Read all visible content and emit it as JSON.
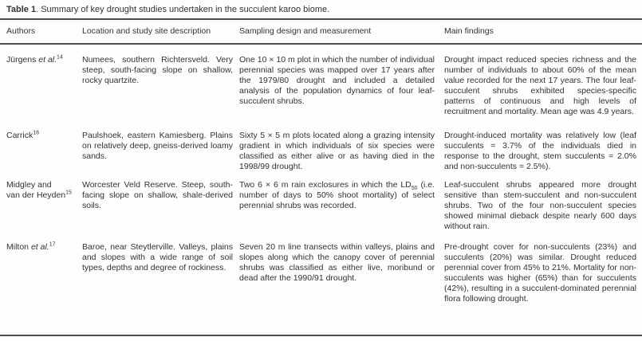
{
  "colors": {
    "text": "#333333",
    "rule": "#4c4c4c",
    "background": "#fdfdfd"
  },
  "table": {
    "title_label": "Table 1",
    "title_rest": ". Summary of key drought studies undertaken in the succulent karoo biome.",
    "columns": [
      "Authors",
      "Location and study site description",
      "Sampling design and measurement",
      "Main findings"
    ],
    "rows": [
      {
        "author_name": "Jürgens ",
        "author_etal": "et al.",
        "author_ref": "14",
        "location": "Numees, southern Richtersveld. Very steep, south-facing slope on shallow, rocky quartzite.",
        "sampling": "One 10 × 10 m plot in which the number of individual perennial species was mapped over 17 years after the 1979/80 drought and included a detailed analysis of the population dynamics of four leaf-succulent shrubs.",
        "findings": "Drought impact reduced species richness and the number of individuals to about 60% of the mean value recorded for the next 17 years. The four leaf-succulent shrubs exhibited species-specific patterns of continuous and high levels of recruitment and mortality. Mean age was 4.9 years."
      },
      {
        "author_name": "Carrick",
        "author_etal": "",
        "author_ref": "16",
        "location": "Paulshoek, eastern Kamiesberg. Plains on relatively deep, gneiss-derived loamy sands.",
        "sampling": "Sixty 5 × 5 m plots located along a grazing intensity gradient in which individuals of six species were classified as either alive or as having died in the 1998/99 drought.",
        "findings": "Drought-induced mortality was relatively low (leaf succulents = 3.7% of the individuals died in response to the drought, stem succulents = 2.0% and non-succulents = 2.5%)."
      },
      {
        "author_name": "Midgley and\nvan der Heyden",
        "author_etal": "",
        "author_ref": "15",
        "location": "Worcester Veld Reserve. Steep, south-facing slope on shallow, shale-derived soils.",
        "sampling_pre": "Two 6 × 6 m rain exclosures in which the LD",
        "sampling_sub": "50",
        "sampling_post": " (i.e. number of days to 50% shoot mortality) of select perennial shrubs was recorded.",
        "findings": "Leaf-succulent shrubs appeared more drought sensitive than stem-succulent and non-succulent shrubs. Two of the four non-succulent species showed minimal dieback despite nearly 600 days without rain."
      },
      {
        "author_name": "Milton ",
        "author_etal": "et al.",
        "author_ref": "17",
        "location": "Baroe, near Steytlerville. Valleys, plains and slopes with a wide range of soil types, depths and degree of rockiness.",
        "sampling": "Seven 20 m line transects within valleys, plains and slopes along which the canopy cover of perennial shrubs was classified as either live, moribund or dead after the 1990/91 drought.",
        "findings": "Pre-drought cover for non-succulents (23%) and succulents (20%) was similar. Drought reduced perennial cover from 45% to 21%. Mortality for non-succulents was higher (65%) than for succulents (42%), resulting in a succulent-dominated perennial flora following drought."
      }
    ]
  }
}
